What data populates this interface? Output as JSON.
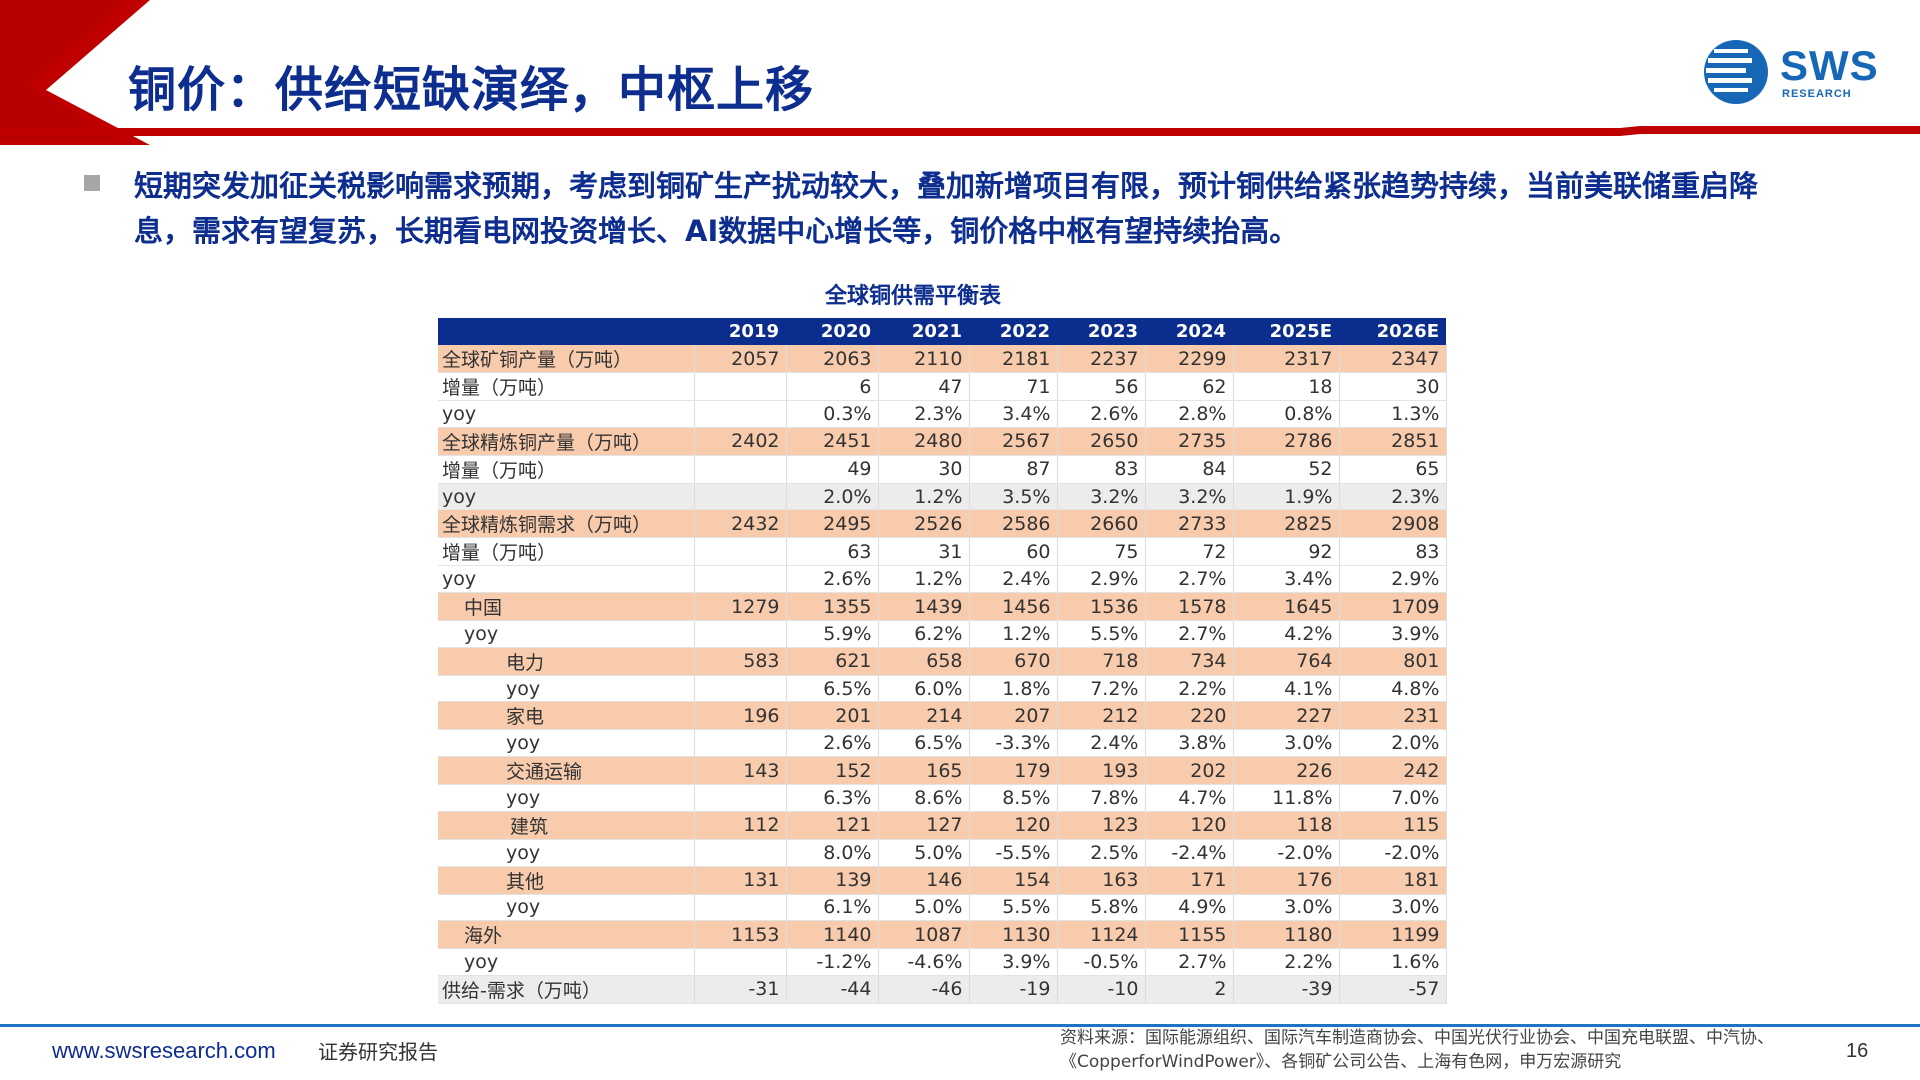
{
  "header": {
    "title": "铜价：供给短缺演绎，中枢上移",
    "logo_text": "SWS",
    "logo_sub": "RESEARCH"
  },
  "bullet": {
    "text": "短期突发加征关税影响需求预期，考虑到铜矿生产扰动较大，叠加新增项目有限，预计铜供给紧张趋势持续，当前美联储重启降息，需求有望复苏，长期看电网投资增长、AI数据中心增长等，铜价格中枢有望持续抬高。"
  },
  "table": {
    "title": "全球铜供需平衡表",
    "headers": [
      "",
      "2019",
      "2020",
      "2021",
      "2022",
      "2023",
      "2024",
      "2025E",
      "2026E"
    ],
    "rows": [
      {
        "label": "全球矿铜产量（万吨）",
        "values": [
          "2057",
          "2063",
          "2110",
          "2181",
          "2237",
          "2299",
          "2317",
          "2347"
        ]
      },
      {
        "label": "增量（万吨）",
        "values": [
          "",
          "6",
          "47",
          "71",
          "56",
          "62",
          "18",
          "30"
        ]
      },
      {
        "label": "yoy",
        "values": [
          "",
          "0.3%",
          "2.3%",
          "3.4%",
          "2.6%",
          "2.8%",
          "0.8%",
          "1.3%"
        ]
      },
      {
        "label": "全球精炼铜产量（万吨）",
        "values": [
          "2402",
          "2451",
          "2480",
          "2567",
          "2650",
          "2735",
          "2786",
          "2851"
        ]
      },
      {
        "label": "增量（万吨）",
        "values": [
          "",
          "49",
          "30",
          "87",
          "83",
          "84",
          "52",
          "65"
        ]
      },
      {
        "label": "yoy",
        "values": [
          "",
          "2.0%",
          "1.2%",
          "3.5%",
          "3.2%",
          "3.2%",
          "1.9%",
          "2.3%"
        ]
      },
      {
        "label": "全球精炼铜需求（万吨）",
        "values": [
          "2432",
          "2495",
          "2526",
          "2586",
          "2660",
          "2733",
          "2825",
          "2908"
        ]
      },
      {
        "label": "增量（万吨）",
        "values": [
          "",
          "63",
          "31",
          "60",
          "75",
          "72",
          "92",
          "83"
        ]
      },
      {
        "label": "yoy",
        "values": [
          "",
          "2.6%",
          "1.2%",
          "2.4%",
          "2.9%",
          "2.7%",
          "3.4%",
          "2.9%"
        ]
      },
      {
        "label": "中国",
        "values": [
          "1279",
          "1355",
          "1439",
          "1456",
          "1536",
          "1578",
          "1645",
          "1709"
        ]
      },
      {
        "label": "yoy",
        "values": [
          "",
          "5.9%",
          "6.2%",
          "1.2%",
          "5.5%",
          "2.7%",
          "4.2%",
          "3.9%"
        ]
      },
      {
        "label": "电力",
        "values": [
          "583",
          "621",
          "658",
          "670",
          "718",
          "734",
          "764",
          "801"
        ]
      },
      {
        "label": "yoy",
        "values": [
          "",
          "6.5%",
          "6.0%",
          "1.8%",
          "7.2%",
          "2.2%",
          "4.1%",
          "4.8%"
        ]
      },
      {
        "label": "家电",
        "values": [
          "196",
          "201",
          "214",
          "207",
          "212",
          "220",
          "227",
          "231"
        ]
      },
      {
        "label": "yoy",
        "values": [
          "",
          "2.6%",
          "6.5%",
          "-3.3%",
          "2.4%",
          "3.8%",
          "3.0%",
          "2.0%"
        ]
      },
      {
        "label": "交通运输",
        "values": [
          "143",
          "152",
          "165",
          "179",
          "193",
          "202",
          "226",
          "242"
        ]
      },
      {
        "label": "yoy",
        "values": [
          "",
          "6.3%",
          "8.6%",
          "8.5%",
          "7.8%",
          "4.7%",
          "11.8%",
          "7.0%"
        ]
      },
      {
        "label": "建筑",
        "values": [
          "112",
          "121",
          "127",
          "120",
          "123",
          "120",
          "118",
          "115"
        ]
      },
      {
        "label": "yoy",
        "values": [
          "",
          "8.0%",
          "5.0%",
          "-5.5%",
          "2.5%",
          "-2.4%",
          "-2.0%",
          "-2.0%"
        ]
      },
      {
        "label": "其他",
        "values": [
          "131",
          "139",
          "146",
          "154",
          "163",
          "171",
          "176",
          "181"
        ]
      },
      {
        "label": "yoy",
        "values": [
          "",
          "6.1%",
          "5.0%",
          "5.5%",
          "5.8%",
          "4.9%",
          "3.0%",
          "3.0%"
        ]
      },
      {
        "label": "海外",
        "values": [
          "1153",
          "1140",
          "1087",
          "1130",
          "1124",
          "1155",
          "1180",
          "1199"
        ]
      },
      {
        "label": "yoy",
        "values": [
          "",
          "-1.2%",
          "-4.6%",
          "3.9%",
          "-0.5%",
          "2.7%",
          "2.2%",
          "1.6%"
        ]
      },
      {
        "label": "供给-需求（万吨）",
        "values": [
          "-31",
          "-44",
          "-46",
          "-19",
          "-10",
          "2",
          "-39",
          "-57"
        ]
      }
    ]
  },
  "footer": {
    "website": "www.swsresearch.com",
    "doc_type": "证券研究报告",
    "source": "资料来源：国际能源组织、国际汽车制造商协会、中国光伏行业协会、中国充电联盟、中汽协、《CopperforWindPower》、各铜矿公司公告、上海有色网，申万宏源研究",
    "page_number": "16"
  },
  "colors": {
    "title_blue": "#0d2d8f",
    "header_bg": "#0b2d8e",
    "highlight_row": "#f8cbad",
    "gray_row": "#ececec",
    "accent_red": "#c00000",
    "logo_blue": "#1668b6"
  }
}
